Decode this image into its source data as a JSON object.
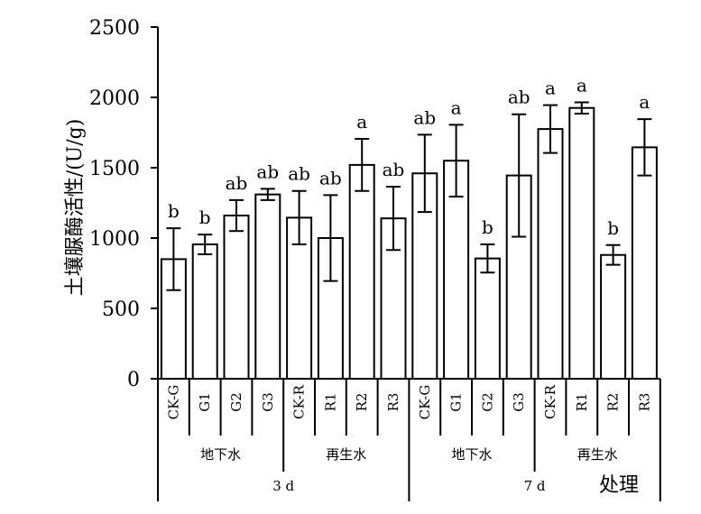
{
  "chart_data": {
    "type": "bar",
    "ylabel": "土壤脲酶活性/(U/g)",
    "xlabel": "处理",
    "ylim": [
      0,
      2500
    ],
    "yticks": [
      0,
      500,
      1000,
      1500,
      2000,
      2500
    ],
    "grid": false,
    "categories": [
      "CK-G",
      "G1",
      "G2",
      "G3",
      "CK-R",
      "R1",
      "R2",
      "R3",
      "CK-G",
      "G1",
      "G2",
      "G3",
      "CK-R",
      "R1",
      "R2",
      "R3"
    ],
    "values": [
      850,
      955,
      1160,
      1310,
      1145,
      1000,
      1520,
      1140,
      1460,
      1550,
      855,
      1445,
      1775,
      1925,
      880,
      1645
    ],
    "errors": [
      220,
      70,
      110,
      40,
      190,
      305,
      185,
      225,
      275,
      255,
      100,
      435,
      170,
      40,
      70,
      200
    ],
    "letters": [
      "b",
      "b",
      "ab",
      "ab",
      "ab",
      "ab",
      "a",
      "ab",
      "ab",
      "a",
      "b",
      "ab",
      "a",
      "a",
      "b",
      "a"
    ],
    "water_groups": [
      {
        "label": "地下水",
        "start": 0,
        "end": 3
      },
      {
        "label": "再生水",
        "start": 4,
        "end": 7
      },
      {
        "label": "地下水",
        "start": 8,
        "end": 11
      },
      {
        "label": "再生水",
        "start": 12,
        "end": 15
      }
    ],
    "time_groups": [
      {
        "label": "3 d",
        "start": 0,
        "end": 7
      },
      {
        "label": "7 d",
        "start": 8,
        "end": 15
      }
    ]
  }
}
